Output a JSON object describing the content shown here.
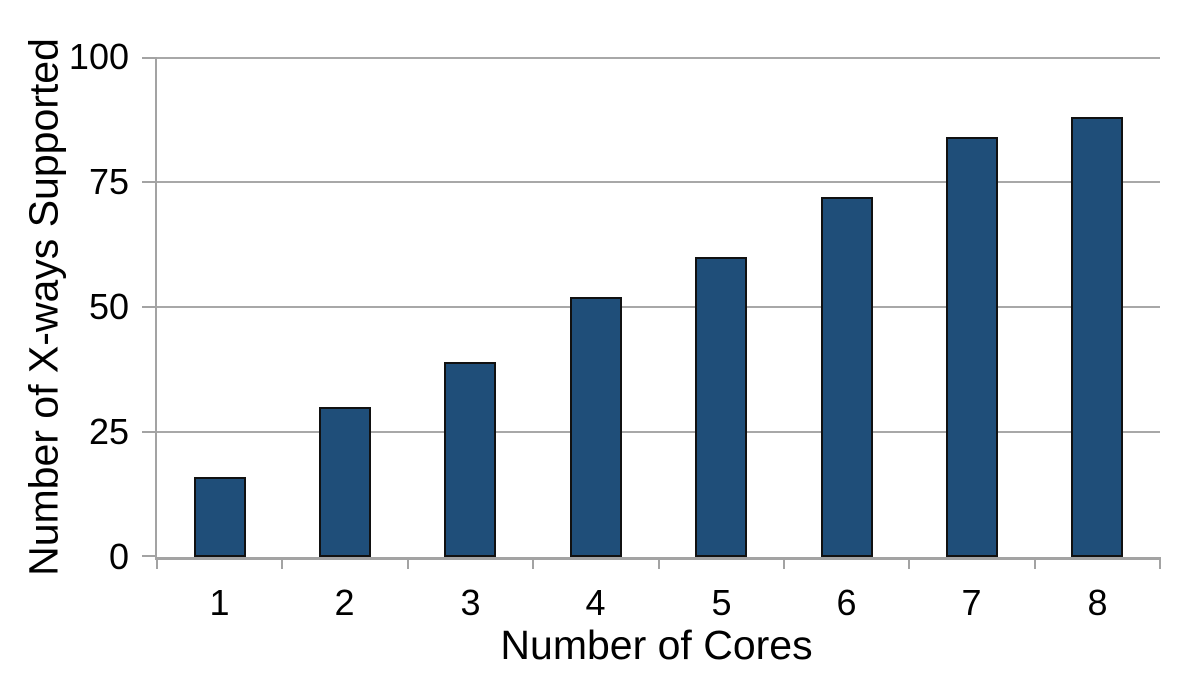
{
  "chart_data": {
    "type": "bar",
    "categories": [
      "1",
      "2",
      "3",
      "4",
      "5",
      "6",
      "7",
      "8"
    ],
    "values": [
      16,
      30,
      39,
      52,
      60,
      72,
      84,
      88
    ],
    "title": "",
    "xlabel": "Number of Cores",
    "ylabel": "Number of X-ways Supported",
    "ylim": [
      0,
      100
    ],
    "yticks": [
      0,
      25,
      50,
      75,
      100
    ],
    "grid": true,
    "legend_position": "none",
    "colors": {
      "bar_fill": "#1F4E79",
      "bar_border": "#111111",
      "gridline": "#A8A8A8",
      "axis_line": "#A3A3A3",
      "text": "#000000",
      "background": "#FFFFFF"
    }
  }
}
